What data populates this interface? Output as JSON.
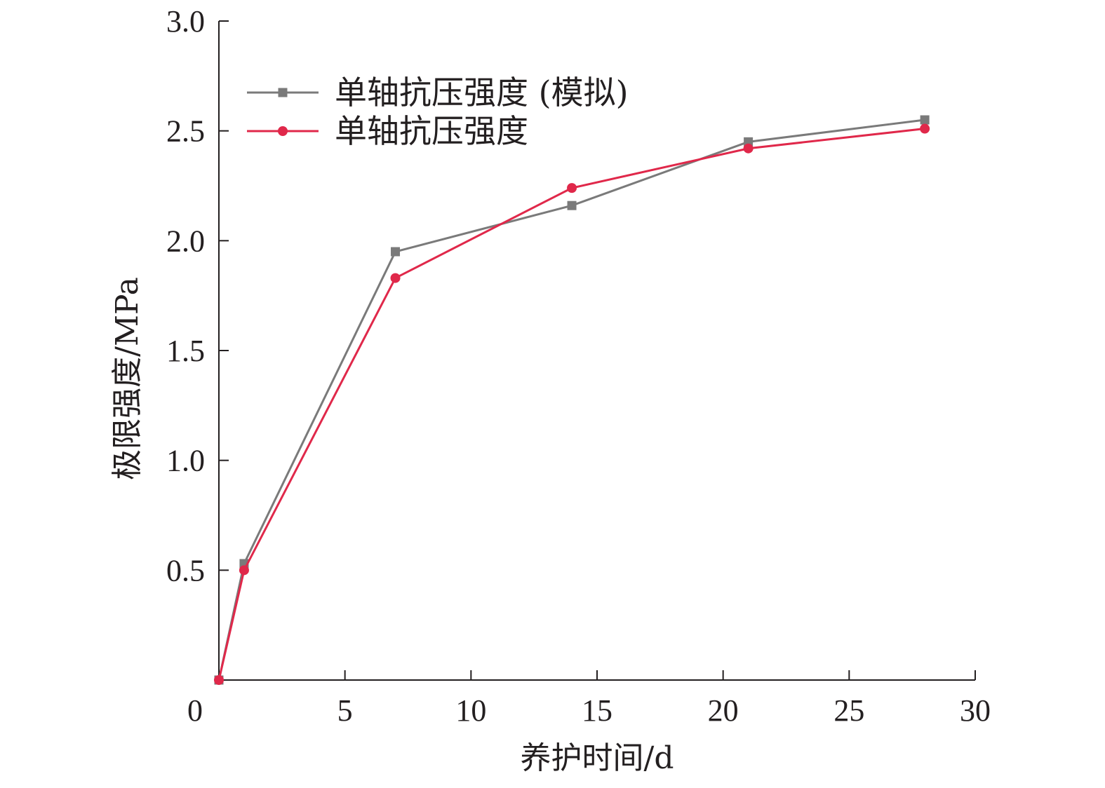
{
  "chart_data": {
    "type": "line",
    "xlabel": "养护时间/d",
    "ylabel": "极限强度/MPa",
    "xlim": [
      0,
      30
    ],
    "ylim": [
      0,
      3.0
    ],
    "xticks": [
      0,
      5,
      10,
      15,
      20,
      25,
      30
    ],
    "yticks": [
      0.5,
      1.0,
      1.5,
      2.0,
      2.5,
      3.0
    ],
    "xtick_labels": [
      "0",
      "5",
      "10",
      "15",
      "20",
      "25",
      "30"
    ],
    "ytick_labels": [
      "0.5",
      "1.0",
      "1.5",
      "2.0",
      "2.5",
      "3.0"
    ],
    "grid": false,
    "legend_position": "top-left",
    "series": [
      {
        "name": "单轴抗压强度 (模拟)",
        "color": "#7a7a7a",
        "marker": "square",
        "x": [
          0,
          1,
          7,
          14,
          21,
          28
        ],
        "y": [
          0,
          0.53,
          1.95,
          2.16,
          2.45,
          2.55
        ]
      },
      {
        "name": "单轴抗压强度",
        "color": "#e0284a",
        "marker": "circle",
        "x": [
          0,
          1,
          7,
          14,
          21,
          28
        ],
        "y": [
          0,
          0.5,
          1.83,
          2.24,
          2.42,
          2.51
        ]
      }
    ]
  }
}
